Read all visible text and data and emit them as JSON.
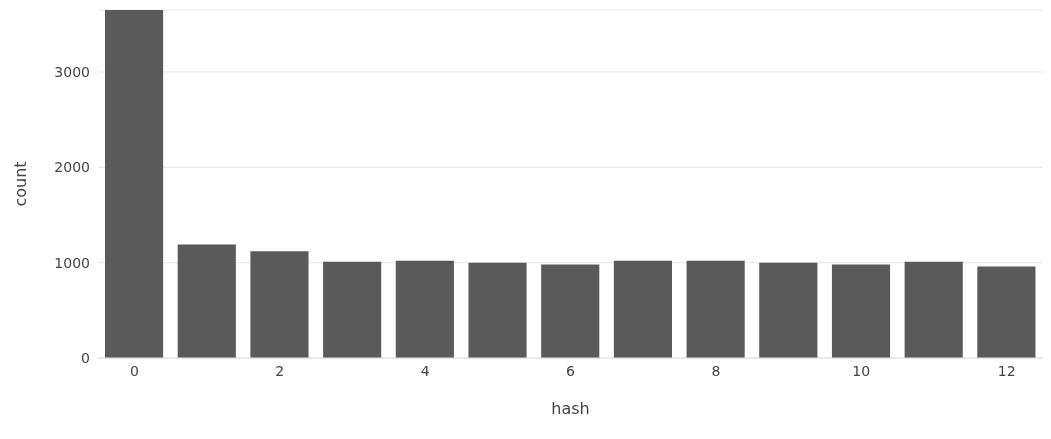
{
  "chart_data": {
    "type": "bar",
    "xlabel": "hash",
    "ylabel": "count",
    "x": [
      0,
      1,
      2,
      3,
      4,
      5,
      6,
      7,
      8,
      9,
      10,
      11,
      12
    ],
    "values": [
      3650,
      1190,
      1120,
      1010,
      1020,
      1000,
      980,
      1020,
      1020,
      1000,
      980,
      1010,
      960
    ],
    "color": "#5a5a5a",
    "xlim": [
      -0.5,
      12.5
    ],
    "xticks": [
      0,
      2,
      4,
      6,
      8,
      10,
      12
    ],
    "ylim": [
      0,
      3650
    ],
    "yticks": [
      0,
      1000,
      2000,
      3000
    ],
    "grid": "y"
  }
}
